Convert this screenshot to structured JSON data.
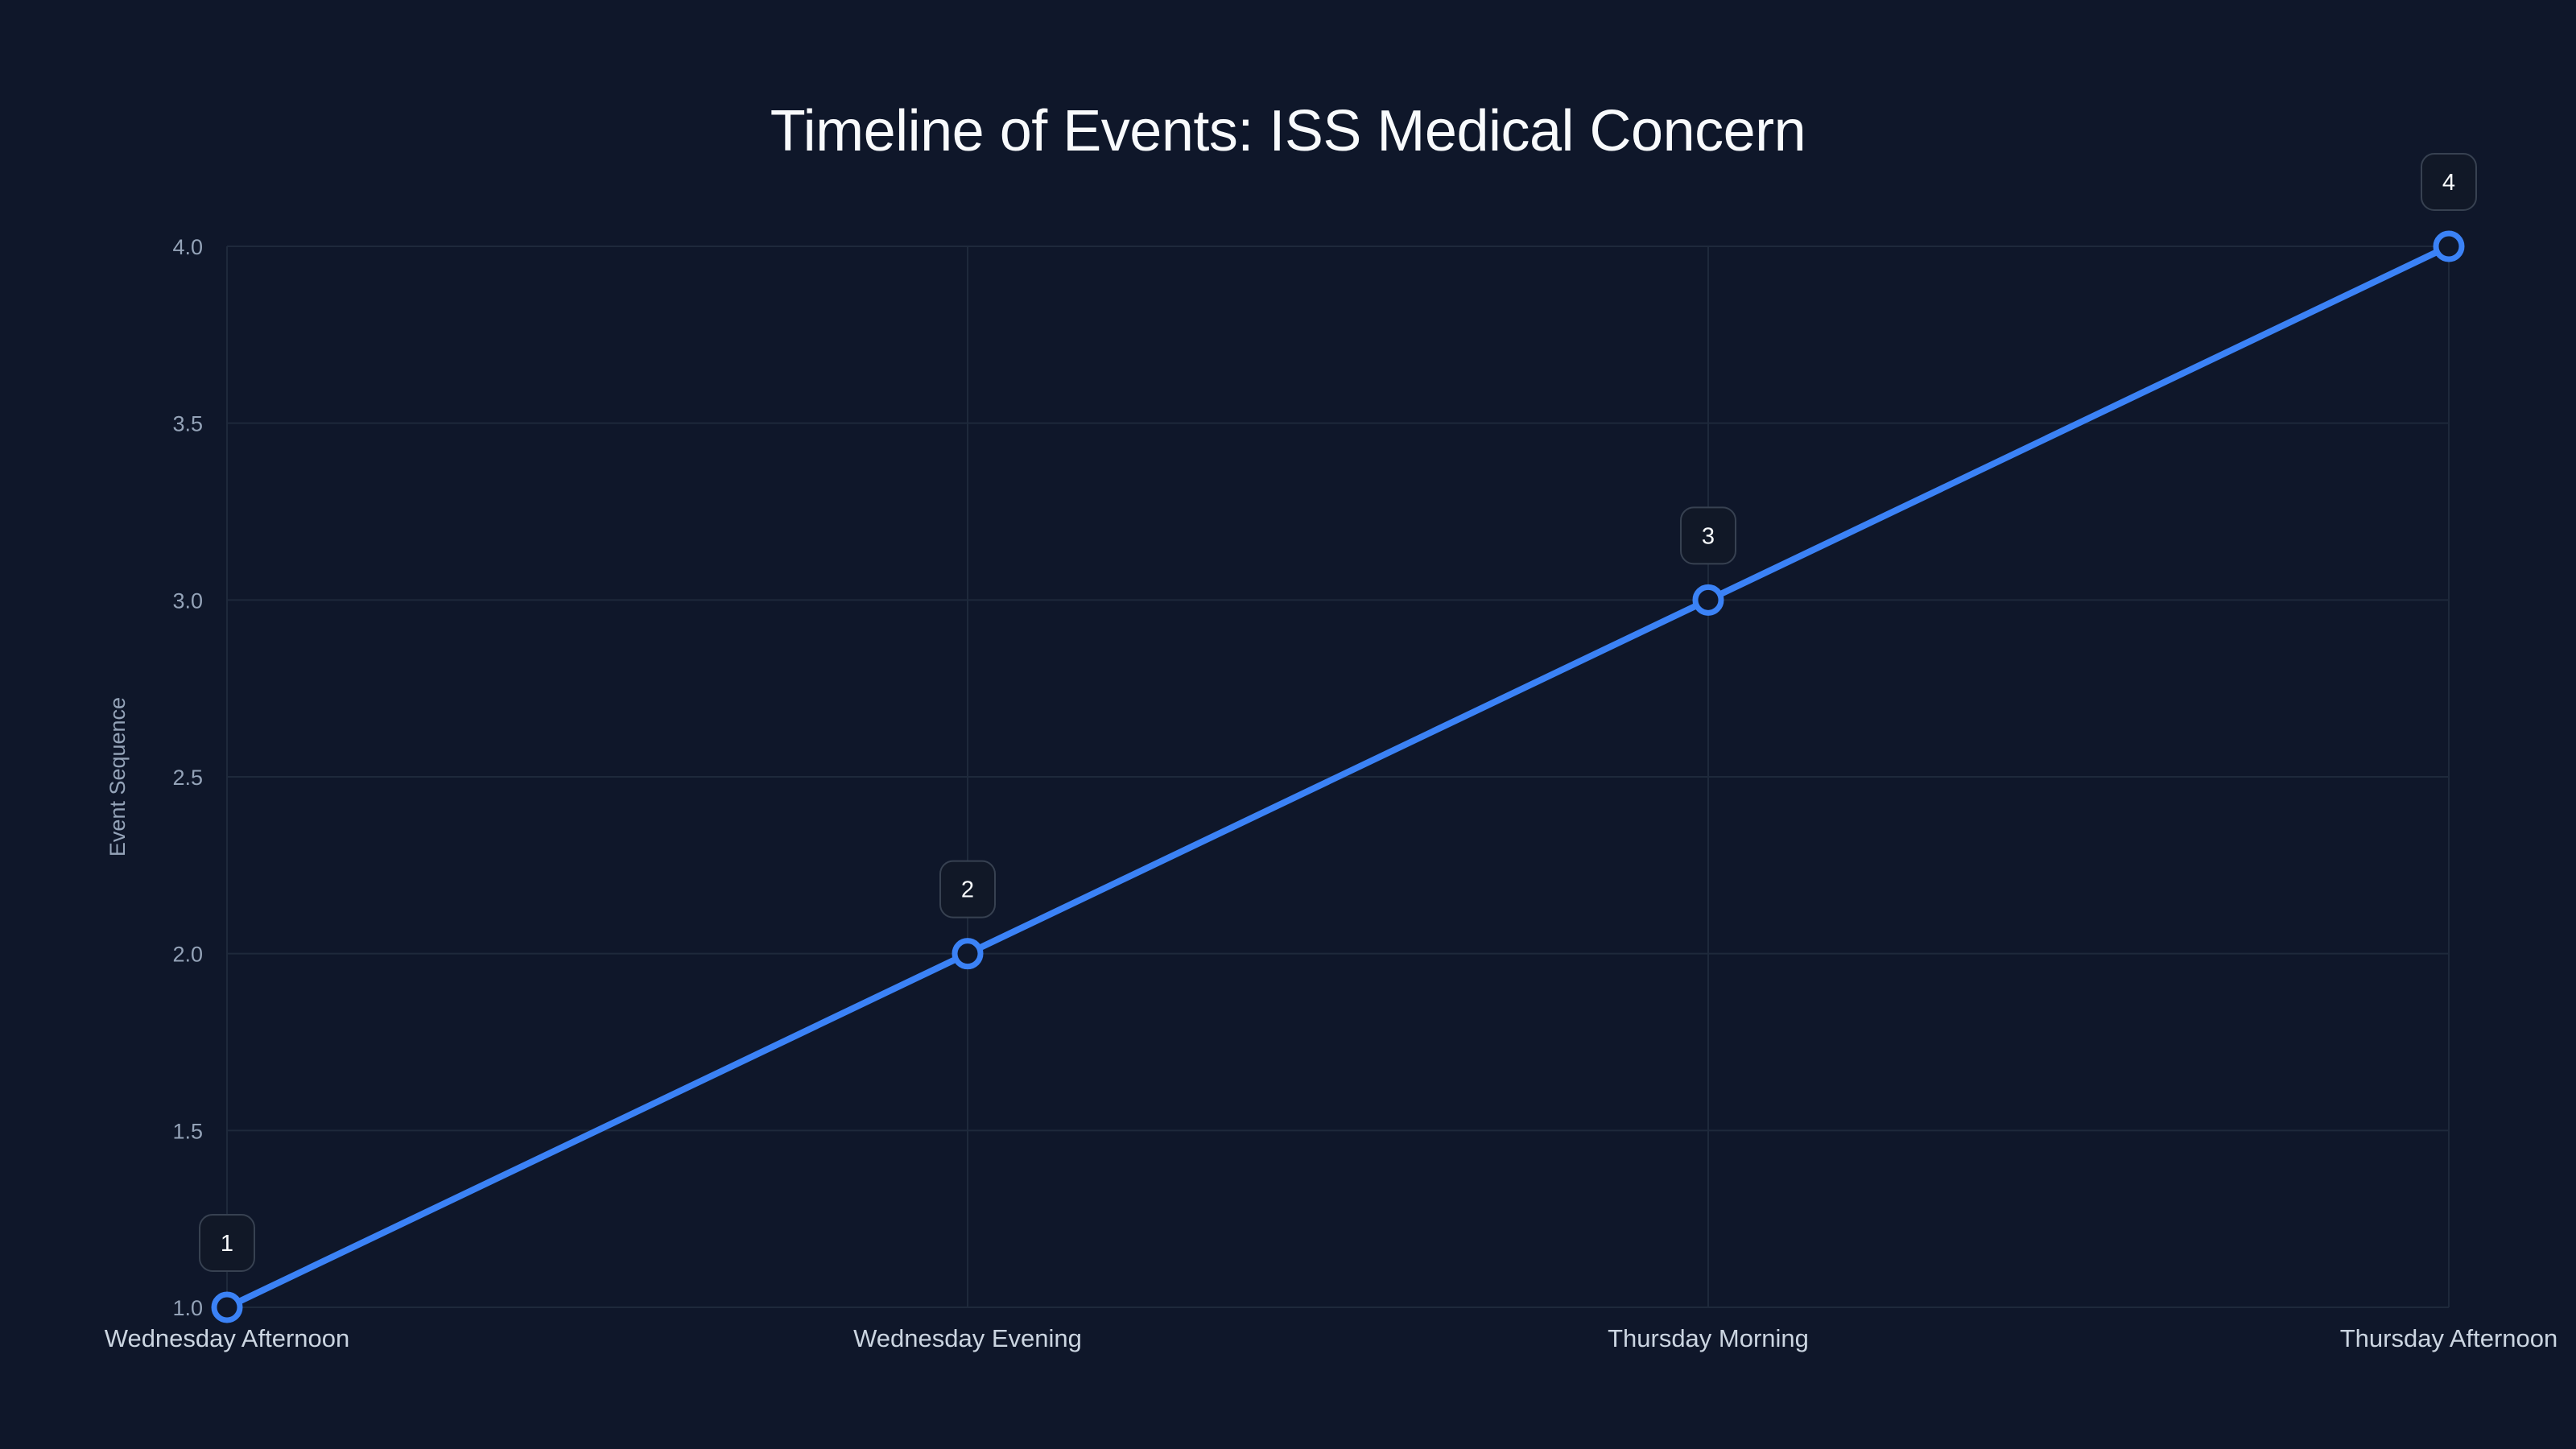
{
  "title": "Timeline of Events: ISS Medical Concern",
  "colors": {
    "background": "#0f172a",
    "grid": "#1e293b",
    "line": "#3b82f6",
    "marker_fill": "#0f172a",
    "label_box_fill": "#111827",
    "label_box_border": "#374151",
    "tick_text": "#94a3b8",
    "category_text": "#cbd5e1",
    "title_text": "#f8fafc"
  },
  "chart_data": {
    "type": "line",
    "title": "Timeline of Events: ISS Medical Concern",
    "xlabel": "",
    "ylabel": "Event Sequence",
    "categories": [
      "Wednesday Afternoon",
      "Wednesday Evening",
      "Thursday Morning",
      "Thursday Afternoon"
    ],
    "series": [
      {
        "name": "Event Sequence",
        "values": [
          1,
          2,
          3,
          4
        ],
        "point_labels": [
          "1",
          "2",
          "3",
          "4"
        ]
      }
    ],
    "ylim": [
      1.0,
      4.0
    ],
    "yticks": [
      "1.0",
      "1.5",
      "2.0",
      "2.5",
      "3.0",
      "3.5",
      "4.0"
    ],
    "grid": true,
    "legend": "none"
  }
}
